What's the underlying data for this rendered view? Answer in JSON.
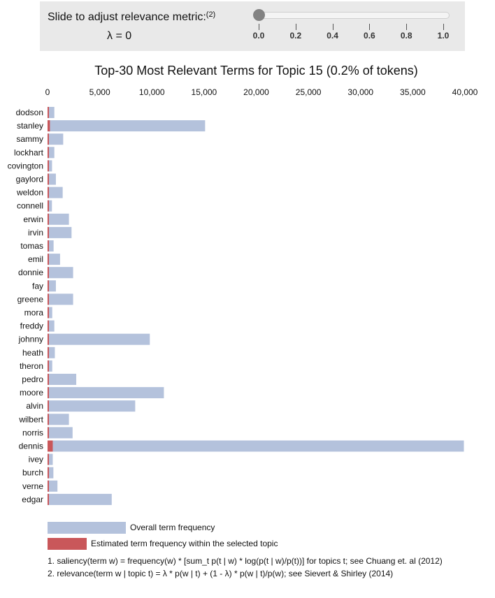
{
  "slider": {
    "label": "Slide to adjust relevance metric:",
    "label_note": "(2)",
    "lambda_text": "λ = 0",
    "value": 0,
    "ticks": [
      "0.0",
      "0.2",
      "0.4",
      "0.6",
      "0.8",
      "1.0"
    ]
  },
  "legend": {
    "overall": "Overall term frequency",
    "topic": "Estimated term frequency within the selected topic"
  },
  "footnotes": {
    "note1": "1. saliency(term w) = frequency(w) * [sum_t p(t | w) * log(p(t | w)/p(t))] for topics t; see Chuang et. al (2012)",
    "note2": "2. relevance(term w | topic t) = λ * p(w | t) + (1 - λ) * p(w | t)/p(w); see Sievert & Shirley (2014)"
  },
  "colors": {
    "overall": "#b4c2dc",
    "topic": "#c9575a",
    "panel": "#e9e9e9",
    "thumb": "#828282"
  },
  "chart_data": {
    "type": "bar",
    "orientation": "horizontal",
    "title": "Top-30 Most Relevant Terms for Topic 15 (0.2% of tokens)",
    "x_ticks": [
      "0",
      "5,000",
      "10,000",
      "15,000",
      "20,000",
      "25,000",
      "30,000",
      "35,000",
      "40,000"
    ],
    "xlim": [
      0,
      40000
    ],
    "categories": [
      "dodson",
      "stanley",
      "sammy",
      "lockhart",
      "covington",
      "gaylord",
      "weldon",
      "connell",
      "erwin",
      "irvin",
      "tomas",
      "emil",
      "donnie",
      "fay",
      "greene",
      "mora",
      "freddy",
      "johnny",
      "heath",
      "theron",
      "pedro",
      "moore",
      "alvin",
      "wilbert",
      "norris",
      "dennis",
      "ivey",
      "burch",
      "verne",
      "edgar"
    ],
    "series": [
      {
        "name": "Overall term frequency",
        "values": [
          650,
          15100,
          1500,
          650,
          430,
          800,
          1450,
          420,
          2050,
          2300,
          580,
          1200,
          2450,
          800,
          2450,
          450,
          650,
          9800,
          700,
          450,
          2750,
          11150,
          8400,
          2050,
          2400,
          39900,
          500,
          560,
          950,
          6150
        ]
      },
      {
        "name": "Estimated term frequency within the selected topic",
        "values": [
          20,
          230,
          20,
          15,
          10,
          12,
          20,
          8,
          25,
          25,
          10,
          15,
          25,
          12,
          30,
          8,
          10,
          110,
          10,
          8,
          30,
          130,
          90,
          25,
          25,
          500,
          8,
          10,
          12,
          70
        ]
      }
    ]
  }
}
